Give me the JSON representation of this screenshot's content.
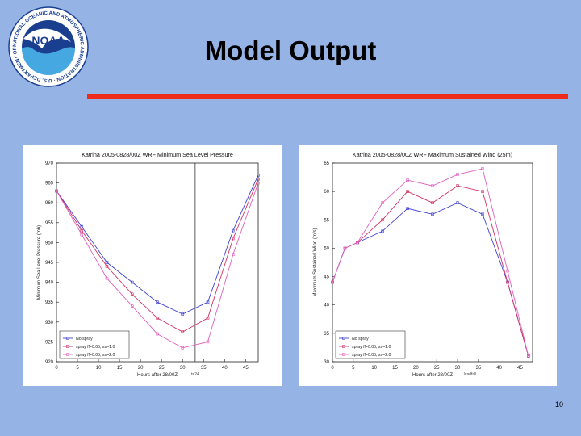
{
  "slide": {
    "title": "Model Output",
    "page_number": "10",
    "logo_text": "NOAA",
    "logo_ring_text": "NATIONAL OCEANIC AND ATMOSPHERIC ADMINISTRATION · U.S. DEPARTMENT OF COMMERCE",
    "rule_color": "#ee2a1b",
    "background_color": "#95b3e5"
  },
  "chart_data": [
    {
      "type": "line",
      "title": "Katrina 2005-0828/00Z WRF Minimum Sea Level Pressure",
      "xlabel": "Hours after 28/00Z",
      "ylabel": "Minimum Sea Level Pressure (mb)",
      "xlim": [
        0,
        48
      ],
      "ylim": [
        920,
        970
      ],
      "xticks": [
        0,
        5,
        10,
        15,
        20,
        25,
        30,
        35,
        40,
        45
      ],
      "yticks": [
        920,
        925,
        930,
        935,
        940,
        945,
        950,
        955,
        960,
        965,
        970
      ],
      "vline_x": 33,
      "vline_label": "t=24",
      "legend_position": "bottom-left",
      "grid": false,
      "series": [
        {
          "name": "No spray",
          "color": "#4040d0",
          "x": [
            0,
            6,
            12,
            18,
            24,
            30,
            36,
            42,
            48
          ],
          "y": [
            963,
            954,
            945,
            940,
            935,
            932,
            935,
            953,
            967
          ]
        },
        {
          "name": "spray ff=0.05, ss=1.0",
          "color": "#d03060",
          "x": [
            0,
            6,
            12,
            18,
            24,
            30,
            36,
            42,
            48
          ],
          "y": [
            963,
            953,
            944,
            937,
            931,
            927.5,
            931,
            951,
            966
          ]
        },
        {
          "name": "spray ff=0.05, ss=2.0",
          "color": "#e060c0",
          "x": [
            0,
            6,
            12,
            18,
            24,
            30,
            36,
            42,
            48
          ],
          "y": [
            963,
            952,
            941,
            934,
            927,
            923.5,
            925,
            947,
            965
          ]
        }
      ]
    },
    {
      "type": "line",
      "title": "Katrina 2005-0828/00Z WRF Maximum Sustained Wind (25m)",
      "xlabel": "Hours after 28/00Z",
      "ylabel": "Maximum Sustained Wind (m/s)",
      "xlim": [
        0,
        48
      ],
      "ylim": [
        30,
        65
      ],
      "xticks": [
        0,
        5,
        10,
        15,
        20,
        25,
        30,
        35,
        40,
        45
      ],
      "yticks": [
        30,
        35,
        40,
        45,
        50,
        55,
        60,
        65
      ],
      "vline_x": 33,
      "vline_label": "landfall",
      "legend_position": "bottom-left",
      "grid": false,
      "series": [
        {
          "name": "No spray",
          "color": "#4040d0",
          "x": [
            0,
            3,
            6,
            12,
            18,
            24,
            30,
            36,
            42,
            47
          ],
          "y": [
            44,
            50,
            51,
            53,
            57,
            56,
            58,
            56,
            44,
            31
          ]
        },
        {
          "name": "spray ff=0.05, ss=1.0",
          "color": "#d03060",
          "x": [
            0,
            3,
            6,
            12,
            18,
            24,
            30,
            36,
            42,
            47
          ],
          "y": [
            44,
            50,
            51,
            55,
            60,
            58,
            61,
            60,
            44,
            31
          ]
        },
        {
          "name": "spray ff=0.05, ss=2.0",
          "color": "#e060c0",
          "x": [
            0,
            3,
            6,
            12,
            18,
            24,
            30,
            36,
            42,
            47
          ],
          "y": [
            44,
            50,
            51,
            58,
            62,
            61,
            63,
            64,
            46,
            31
          ]
        }
      ]
    }
  ]
}
